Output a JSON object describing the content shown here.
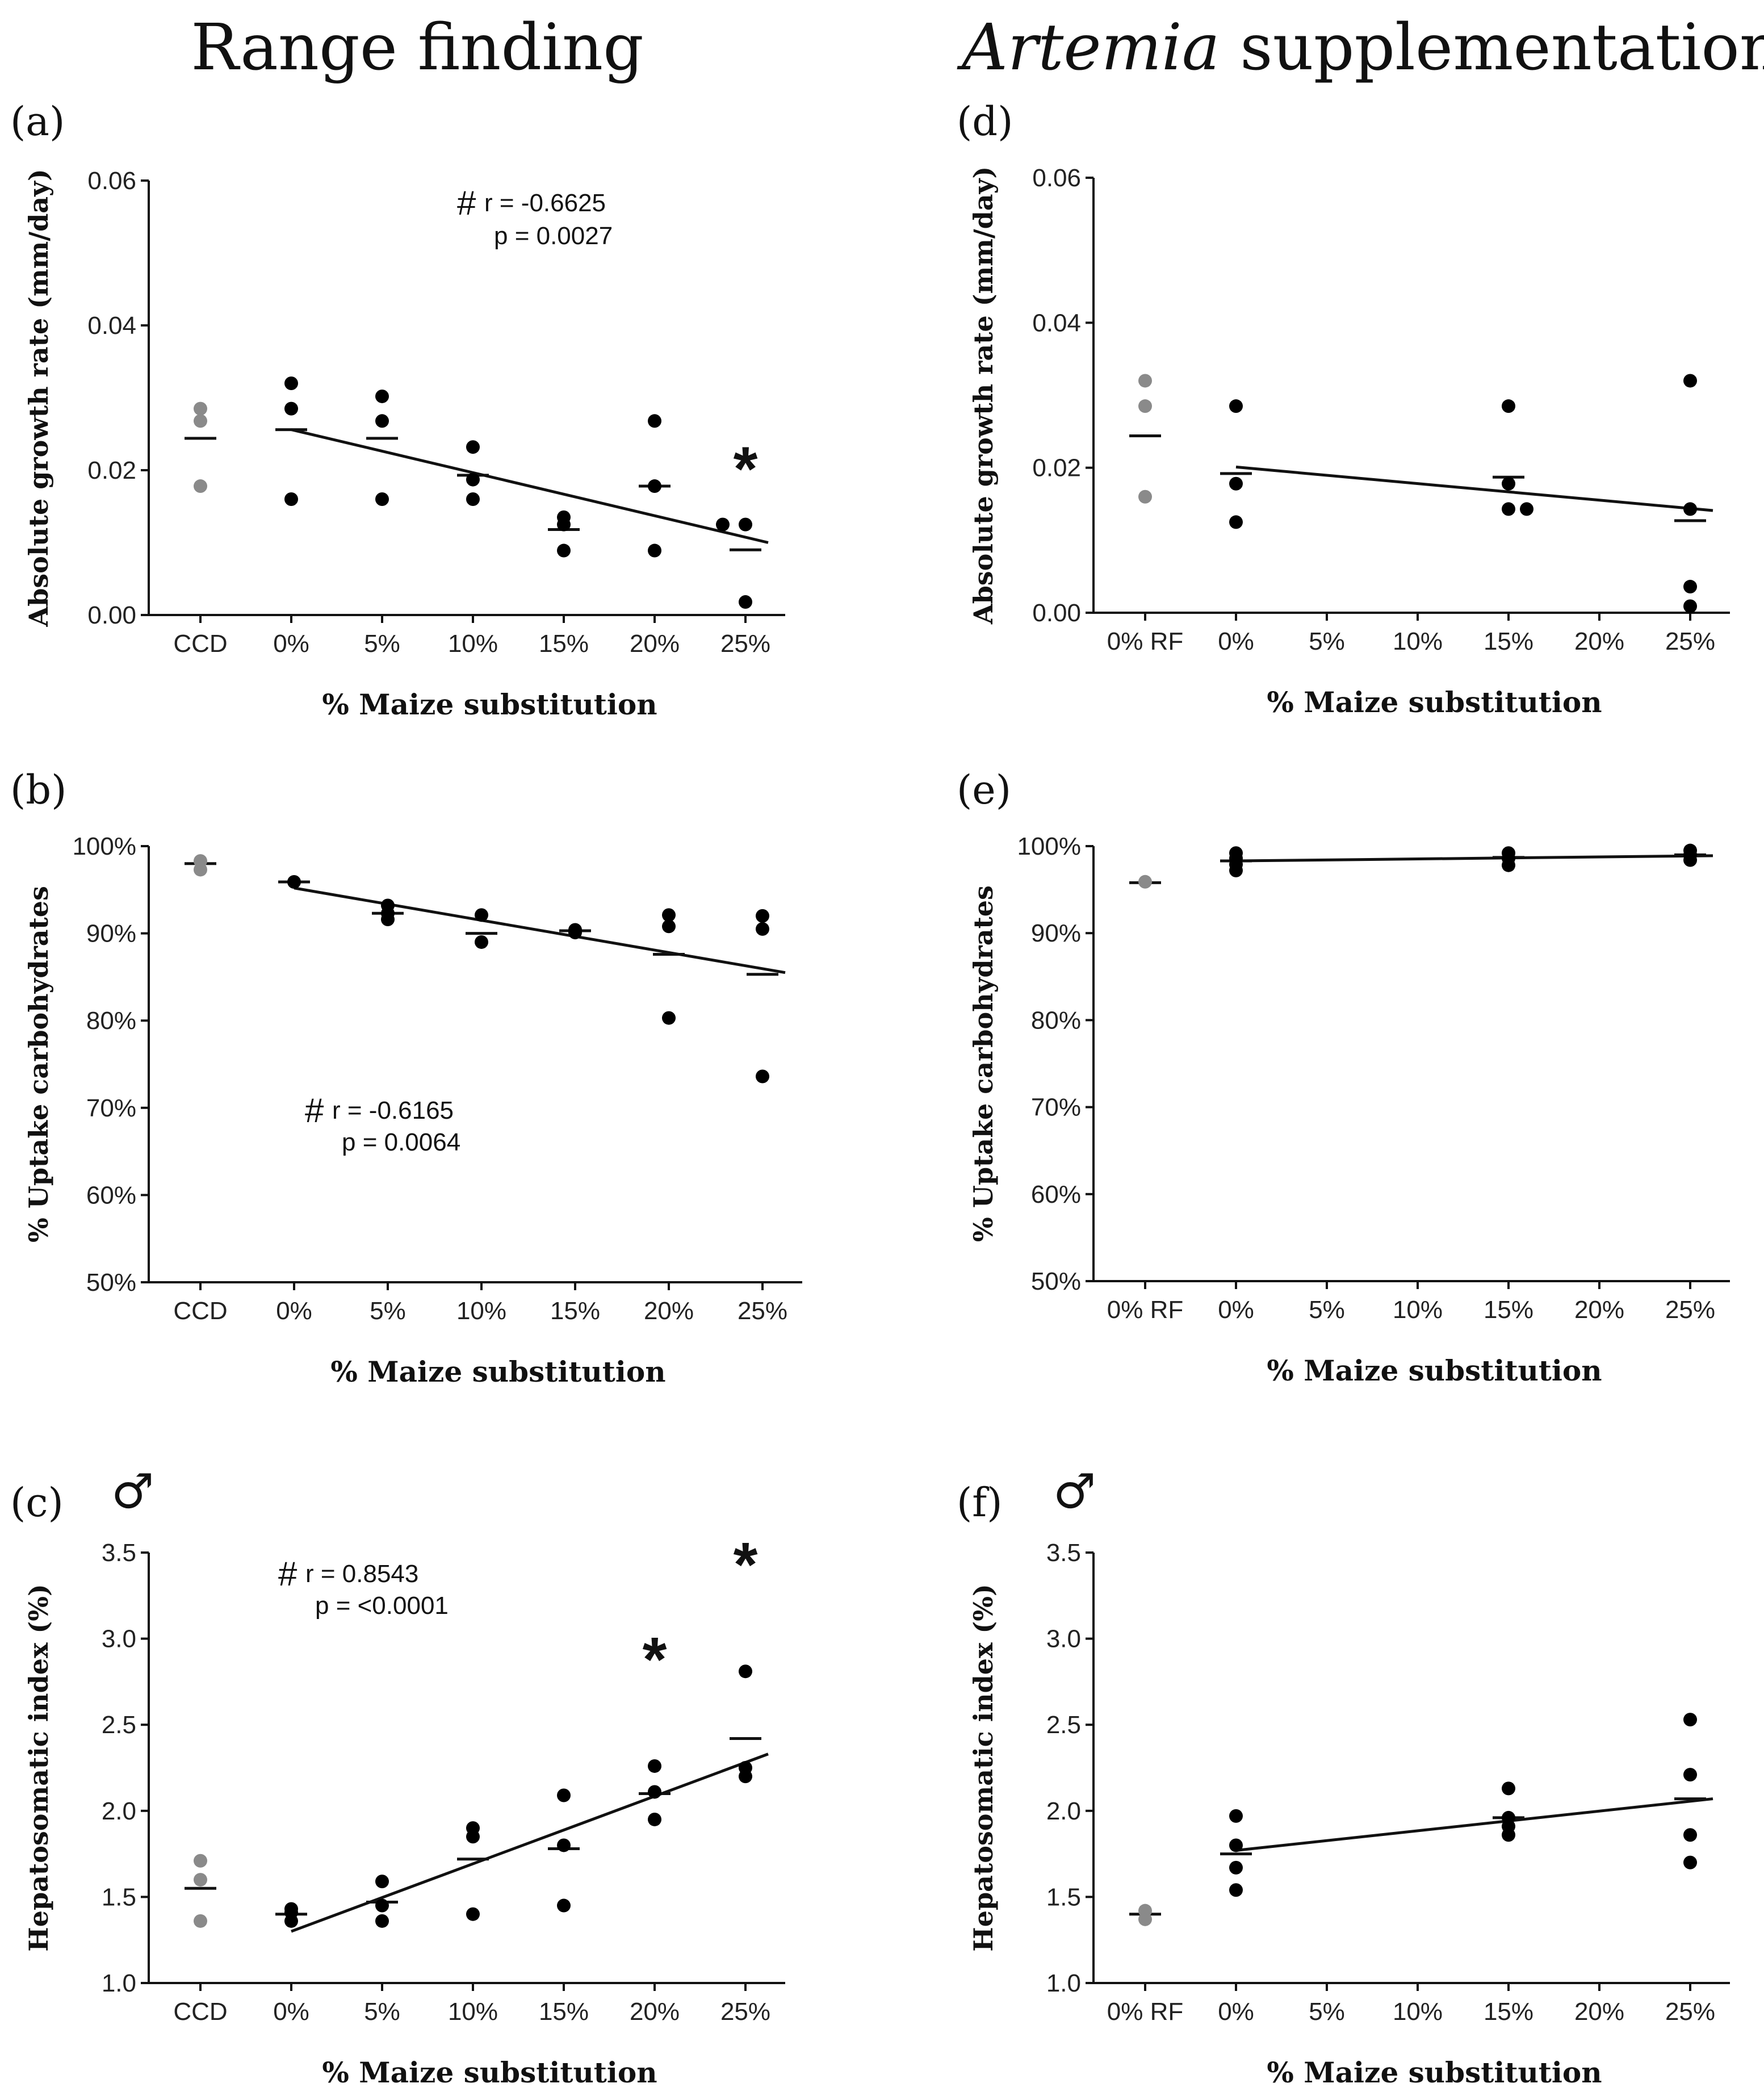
{
  "titles": {
    "left": "Range finding",
    "right_italic": "Artemia",
    "right_rest": " supplementation"
  },
  "colors": {
    "grey_point": "#8a8a8a",
    "black_point": "#000000"
  },
  "chart_data": [
    {
      "id": "a",
      "letter": "(a)",
      "type": "scatter",
      "xlabel": "% Maize substitution",
      "ylabel": "Absolute growth rate (mm/day)",
      "categories": [
        "CCD",
        "0%",
        "5%",
        "10%",
        "15%",
        "20%",
        "25%"
      ],
      "ylim": [
        0,
        0.06
      ],
      "yticks": [
        0,
        0.02,
        0.04,
        0.06
      ],
      "ytick_labels": [
        "0.00",
        "0.02",
        "0.04",
        "0.06"
      ],
      "points": [
        {
          "cat": 0,
          "values": [
            0.0285,
            0.0268,
            0.0178
          ],
          "color": "grey"
        },
        {
          "cat": 1,
          "values": [
            0.032,
            0.0285,
            0.016
          ]
        },
        {
          "cat": 2,
          "values": [
            0.0302,
            0.0268,
            0.016
          ]
        },
        {
          "cat": 3,
          "values": [
            0.0232,
            0.0187,
            0.016
          ]
        },
        {
          "cat": 4,
          "values": [
            0.0135,
            0.0125,
            0.0089
          ]
        },
        {
          "cat": 5,
          "values": [
            0.0268,
            0.0178,
            0.0089
          ]
        },
        {
          "cat": 6,
          "values": [
            0.0125,
            0.0125,
            0.0018
          ],
          "offsets": [
            -0.25,
            0,
            0
          ]
        }
      ],
      "means": [
        0.0244,
        0.0256,
        0.0244,
        0.0193,
        0.0118,
        0.0178,
        0.009
      ],
      "trend": {
        "from": [
          1,
          0.0256
        ],
        "to": [
          6,
          0.01
        ]
      },
      "stats": {
        "r": "r  = -0.6625",
        "p": "p = 0.0027",
        "hash": "#"
      },
      "stars": [
        6
      ]
    },
    {
      "id": "b",
      "letter": "(b)",
      "type": "scatter",
      "xlabel": "% Maize substitution",
      "ylabel": "% Uptake carbohydrates",
      "categories": [
        "CCD",
        "0%",
        "5%",
        "10%",
        "15%",
        "20%",
        "25%"
      ],
      "ylim": [
        50,
        100
      ],
      "yticks": [
        50,
        60,
        70,
        80,
        90,
        100
      ],
      "ytick_labels": [
        "50%",
        "60%",
        "70%",
        "80%",
        "90%",
        "100%"
      ],
      "points": [
        {
          "cat": 0,
          "values": [
            98.3,
            97.3
          ],
          "color": "grey"
        },
        {
          "cat": 1,
          "values": [
            95.9
          ]
        },
        {
          "cat": 2,
          "values": [
            93.2,
            92.3,
            91.6
          ]
        },
        {
          "cat": 3,
          "values": [
            92.1,
            89.0
          ]
        },
        {
          "cat": 4,
          "values": [
            90.4,
            90.1
          ]
        },
        {
          "cat": 5,
          "values": [
            92.1,
            90.8,
            80.3
          ]
        },
        {
          "cat": 6,
          "values": [
            92.0,
            90.5,
            73.6
          ]
        }
      ],
      "means": [
        98.0,
        95.9,
        92.3,
        90.0,
        90.3,
        87.6,
        85.3
      ],
      "trend": {
        "from": [
          1,
          95.2
        ],
        "to": [
          6,
          85.5
        ]
      },
      "stats": {
        "r": "r  = -0.6165",
        "p": "p = 0.0064",
        "hash": "#"
      },
      "stars": []
    },
    {
      "id": "c",
      "letter": "(c)",
      "type": "scatter",
      "male": "♂",
      "xlabel": "% Maize substitution",
      "ylabel": "Hepatosomatic index (%)",
      "categories": [
        "CCD",
        "0%",
        "5%",
        "10%",
        "15%",
        "20%",
        "25%"
      ],
      "ylim": [
        1.0,
        3.5
      ],
      "yticks": [
        1.0,
        1.5,
        2.0,
        2.5,
        3.0,
        3.5
      ],
      "ytick_labels": [
        "1.0",
        "1.5",
        "2.0",
        "2.5",
        "3.0",
        "3.5"
      ],
      "points": [
        {
          "cat": 0,
          "values": [
            1.71,
            1.6,
            1.36
          ],
          "color": "grey"
        },
        {
          "cat": 1,
          "values": [
            1.43,
            1.41,
            1.36
          ]
        },
        {
          "cat": 2,
          "values": [
            1.59,
            1.45,
            1.36
          ]
        },
        {
          "cat": 3,
          "values": [
            1.9,
            1.85,
            1.4
          ]
        },
        {
          "cat": 4,
          "values": [
            2.09,
            1.8,
            1.45
          ]
        },
        {
          "cat": 5,
          "values": [
            2.26,
            2.11,
            1.95
          ]
        },
        {
          "cat": 6,
          "values": [
            2.81,
            2.25,
            2.2
          ]
        }
      ],
      "means": [
        1.55,
        1.4,
        1.47,
        1.72,
        1.78,
        2.1,
        2.42
      ],
      "trend": {
        "from": [
          1,
          1.3
        ],
        "to": [
          6,
          2.33
        ]
      },
      "stats": {
        "r": "r  = 0.8543",
        "p": "p = <0.0001",
        "hash": "#"
      },
      "stars": [
        5,
        6
      ]
    },
    {
      "id": "d",
      "letter": "(d)",
      "type": "scatter",
      "xlabel": "% Maize substitution",
      "ylabel": "Absolute growth rate (mm/day)",
      "categories": [
        "0% RF",
        "0%",
        "5%",
        "10%",
        "15%",
        "20%",
        "25%"
      ],
      "ylim": [
        0,
        0.06
      ],
      "yticks": [
        0,
        0.02,
        0.04,
        0.06
      ],
      "ytick_labels": [
        "0.00",
        "0.02",
        "0.04",
        "0.06"
      ],
      "points": [
        {
          "cat": 0,
          "values": [
            0.032,
            0.0285,
            0.016
          ],
          "color": "grey"
        },
        {
          "cat": 1,
          "values": [
            0.0285,
            0.0178,
            0.0125
          ]
        },
        {
          "cat": 4,
          "values": [
            0.0285,
            0.0178,
            0.0143,
            0.0143
          ],
          "offsets": [
            0,
            0,
            0,
            0.2
          ]
        },
        {
          "cat": 6,
          "values": [
            0.032,
            0.0143,
            0.0036,
            0.0009
          ]
        }
      ],
      "means": [
        {
          "cat": 0,
          "value": 0.0244
        },
        {
          "cat": 1,
          "value": 0.0192
        },
        {
          "cat": 4,
          "value": 0.0187
        },
        {
          "cat": 6,
          "value": 0.0127
        }
      ],
      "trend": {
        "from": [
          1,
          0.0201
        ],
        "to": [
          6,
          0.0141
        ]
      },
      "stars": []
    },
    {
      "id": "e",
      "letter": "(e)",
      "type": "scatter",
      "xlabel": "% Maize substitution",
      "ylabel": "% Uptake carbohydrates",
      "categories": [
        "0% RF",
        "0%",
        "5%",
        "10%",
        "15%",
        "20%",
        "25%"
      ],
      "ylim": [
        50,
        100
      ],
      "yticks": [
        50,
        60,
        70,
        80,
        90,
        100
      ],
      "ytick_labels": [
        "50%",
        "60%",
        "70%",
        "80%",
        "90%",
        "100%"
      ],
      "points": [
        {
          "cat": 0,
          "values": [
            95.9
          ],
          "color": "grey"
        },
        {
          "cat": 1,
          "values": [
            99.2,
            98.6,
            97.9,
            97.2
          ]
        },
        {
          "cat": 4,
          "values": [
            99.2,
            98.6,
            97.8
          ]
        },
        {
          "cat": 6,
          "values": [
            99.5,
            99.0,
            98.4
          ]
        }
      ],
      "means": [
        {
          "cat": 0,
          "value": 95.8
        },
        {
          "cat": 1,
          "value": 98.3
        },
        {
          "cat": 4,
          "value": 98.7
        },
        {
          "cat": 6,
          "value": 99.0
        }
      ],
      "trend": {
        "from": [
          1,
          98.3
        ],
        "to": [
          6,
          98.9
        ]
      },
      "stars": []
    },
    {
      "id": "f",
      "letter": "(f)",
      "type": "scatter",
      "male": "♂",
      "xlabel": "% Maize substitution",
      "ylabel": "Hepatosomatic index (%)",
      "categories": [
        "0% RF",
        "0%",
        "5%",
        "10%",
        "15%",
        "20%",
        "25%"
      ],
      "ylim": [
        1.0,
        3.5
      ],
      "yticks": [
        1.0,
        1.5,
        2.0,
        2.5,
        3.0,
        3.5
      ],
      "ytick_labels": [
        "1.0",
        "1.5",
        "2.0",
        "2.5",
        "3.0",
        "3.5"
      ],
      "points": [
        {
          "cat": 0,
          "values": [
            1.42,
            1.37
          ],
          "color": "grey"
        },
        {
          "cat": 1,
          "values": [
            1.97,
            1.8,
            1.67,
            1.54
          ]
        },
        {
          "cat": 4,
          "values": [
            2.13,
            1.96,
            1.91,
            1.86
          ]
        },
        {
          "cat": 6,
          "values": [
            2.53,
            2.21,
            1.86,
            1.7
          ]
        }
      ],
      "means": [
        {
          "cat": 0,
          "value": 1.4
        },
        {
          "cat": 1,
          "value": 1.75
        },
        {
          "cat": 4,
          "value": 1.96
        },
        {
          "cat": 6,
          "value": 2.07
        }
      ],
      "trend": {
        "from": [
          1,
          1.77
        ],
        "to": [
          6,
          2.07
        ]
      },
      "stars": []
    }
  ]
}
